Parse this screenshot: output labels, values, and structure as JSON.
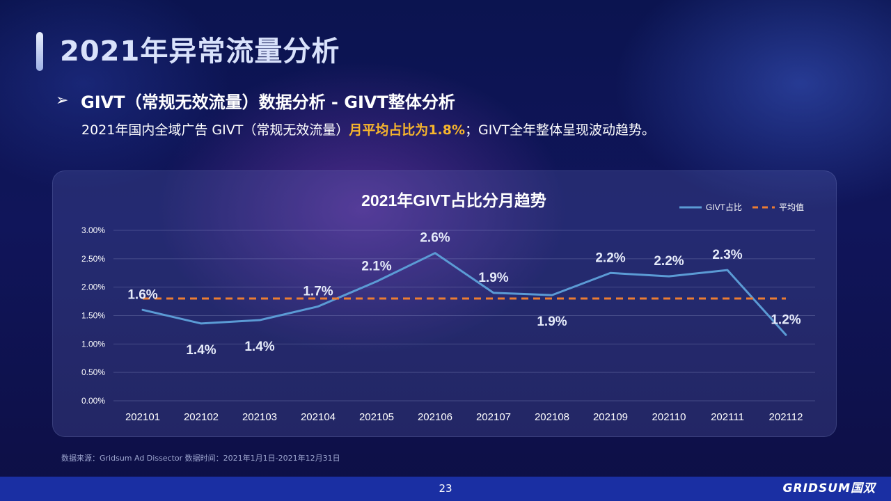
{
  "header": {
    "title": "2021年异常流量分析"
  },
  "section": {
    "bullet_icon": "arrow-right-icon",
    "title": "GIVT（常规无效流量）数据分析 - GIVT整体分析",
    "summary_prefix": "2021年国内全域广告 GIVT（常规无效流量）",
    "summary_highlight": "月平均占比为1.8%",
    "summary_suffix": "；GIVT全年整体呈现波动趋势。"
  },
  "chart_data": {
    "type": "line",
    "title": "2021年GIVT占比分月趋势",
    "categories": [
      "202101",
      "202102",
      "202103",
      "202104",
      "202105",
      "202106",
      "202107",
      "202108",
      "202109",
      "202110",
      "202111",
      "202112"
    ],
    "series": [
      {
        "name": "GIVT占比",
        "values": [
          1.6,
          1.36,
          1.42,
          1.66,
          2.1,
          2.6,
          1.9,
          1.86,
          2.25,
          2.19,
          2.3,
          1.16
        ],
        "labels": [
          "1.6%",
          "1.4%",
          "1.4%",
          "1.7%",
          "2.1%",
          "2.6%",
          "1.9%",
          "1.9%",
          "2.2%",
          "2.2%",
          "2.3%",
          "1.2%"
        ],
        "color": "#5b9bd5"
      },
      {
        "name": "平均值",
        "values": [
          1.8,
          1.8,
          1.8,
          1.8,
          1.8,
          1.8,
          1.8,
          1.8,
          1.8,
          1.8,
          1.8,
          1.8
        ],
        "color": "#ed7d31",
        "style": "dashed"
      }
    ],
    "ylim": [
      0,
      3.0
    ],
    "yticks": [
      "0.00%",
      "0.50%",
      "1.00%",
      "1.50%",
      "2.00%",
      "2.50%",
      "3.00%"
    ],
    "grid": true,
    "legend": "top-right"
  },
  "footer": {
    "source": "数据来源：Gridsum Ad Dissector 数据时间：2021年1月1日-2021年12月31日",
    "page_number": "23",
    "logo": "GRIDSUM国双"
  }
}
